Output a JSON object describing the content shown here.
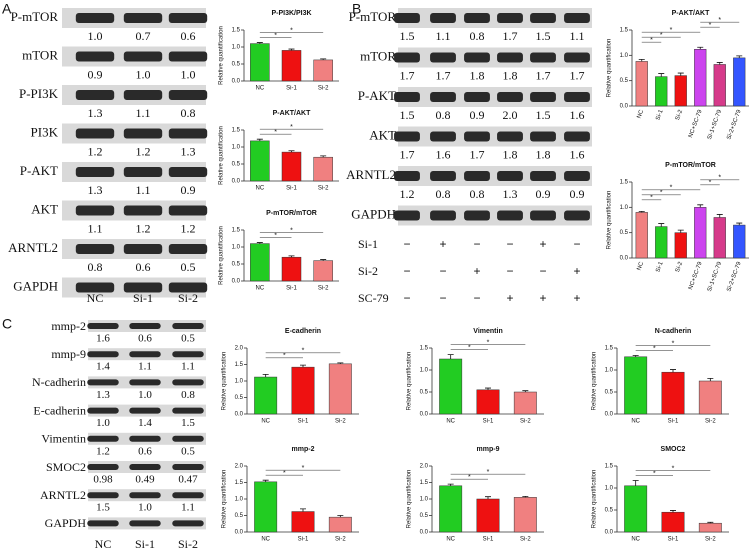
{
  "panel_labels": [
    "A",
    "B",
    "C"
  ],
  "blots": [
    {
      "columns": [
        "NC",
        "Si-1",
        "Si-2"
      ],
      "rows": [
        {
          "name": "P-mTOR",
          "values": [
            "1.0",
            "0.7",
            "0.6"
          ]
        },
        {
          "name": "mTOR",
          "values": [
            "0.9",
            "1.0",
            "1.0"
          ]
        },
        {
          "name": "P-PI3K",
          "values": [
            "1.3",
            "1.1",
            "0.8"
          ]
        },
        {
          "name": "PI3K",
          "values": [
            "1.2",
            "1.2",
            "1.3"
          ]
        },
        {
          "name": "P-AKT",
          "values": [
            "1.3",
            "1.1",
            "0.9"
          ]
        },
        {
          "name": "AKT",
          "values": [
            "1.1",
            "1.2",
            "1.2"
          ]
        },
        {
          "name": "ARNTL2",
          "values": [
            "0.8",
            "0.6",
            "0.5"
          ]
        },
        {
          "name": "GAPDH",
          "values": []
        }
      ]
    },
    {
      "rows": [
        {
          "name": "P-mTOR",
          "values": [
            "1.5",
            "1.1",
            "0.8",
            "1.7",
            "1.5",
            "1.1"
          ]
        },
        {
          "name": "mTOR",
          "values": [
            "1.7",
            "1.7",
            "1.8",
            "1.8",
            "1.7",
            "1.7"
          ]
        },
        {
          "name": "P-AKT",
          "values": [
            "1.5",
            "0.8",
            "0.9",
            "2.0",
            "1.5",
            "1.6"
          ]
        },
        {
          "name": "AKT",
          "values": [
            "1.7",
            "1.6",
            "1.7",
            "1.8",
            "1.8",
            "1.6"
          ]
        },
        {
          "name": "ARNTL2",
          "values": [
            "1.2",
            "0.8",
            "0.8",
            "1.3",
            "0.9",
            "0.9"
          ]
        },
        {
          "name": "GAPDH",
          "values": []
        }
      ],
      "treatments": [
        {
          "name": "Si-1",
          "values": [
            "−",
            "+",
            "−",
            "−",
            "+",
            "−"
          ]
        },
        {
          "name": "Si-2",
          "values": [
            "−",
            "−",
            "+",
            "−",
            "−",
            "+"
          ]
        },
        {
          "name": "SC-79",
          "values": [
            "−",
            "−",
            "−",
            "+",
            "+",
            "+"
          ]
        }
      ]
    },
    {
      "columns": [
        "NC",
        "Si-1",
        "Si-2"
      ],
      "rows": [
        {
          "name": "mmp-2",
          "values": [
            "1.6",
            "0.6",
            "0.5"
          ]
        },
        {
          "name": "mmp-9",
          "values": [
            "1.4",
            "1.1",
            "1.1"
          ]
        },
        {
          "name": "N-cadherin",
          "values": [
            "1.3",
            "1.0",
            "0.8"
          ]
        },
        {
          "name": "E-cadherin",
          "values": [
            "1.0",
            "1.4",
            "1.5"
          ]
        },
        {
          "name": "Vimentin",
          "values": [
            "1.2",
            "0.6",
            "0.5"
          ]
        },
        {
          "name": "SMOC2",
          "values": [
            "0.98",
            "0.49",
            "0.47"
          ]
        },
        {
          "name": "ARNTL2",
          "values": [
            "1.5",
            "1.0",
            "1.1"
          ]
        },
        {
          "name": "GAPDH",
          "values": []
        }
      ]
    }
  ],
  "chart_data": [
    {
      "type": "bar",
      "title": "P-PI3K/PI3K",
      "ylabel": "Relative quantification",
      "categories": [
        "NC",
        "Si-1",
        "Si-2"
      ],
      "values": [
        1.1,
        0.9,
        0.62
      ],
      "errors": [
        0.03,
        0.04,
        0.03
      ],
      "colors": [
        "#22cc22",
        "#ee1111",
        "#f08080"
      ],
      "ylim": [
        0,
        1.5
      ],
      "yticks": [
        {
          "value": 0,
          "label": "0.0"
        },
        {
          "value": 0.5,
          "label": "0.5"
        },
        {
          "value": 1,
          "label": "1.0"
        },
        {
          "value": 1.5,
          "label": "1.5"
        }
      ],
      "annotations": [
        "*",
        "*"
      ]
    },
    {
      "type": "bar",
      "title": "P-AKT/AKT",
      "ylabel": "Relative quantification",
      "categories": [
        "NC",
        "Si-1",
        "Si-2"
      ],
      "values": [
        1.18,
        0.85,
        0.7
      ],
      "errors": [
        0.05,
        0.04,
        0.04
      ],
      "colors": [
        "#22cc22",
        "#ee1111",
        "#f08080"
      ],
      "ylim": [
        0,
        1.5
      ],
      "yticks": [
        {
          "value": 0,
          "label": "0.0"
        },
        {
          "value": 0.5,
          "label": "0.5"
        },
        {
          "value": 1,
          "label": "1.0"
        },
        {
          "value": 1.5,
          "label": "1.5"
        }
      ],
      "annotations": [
        "*",
        "*"
      ]
    },
    {
      "type": "bar",
      "title": "P-mTOR/mTOR",
      "ylabel": "Relative quantification",
      "categories": [
        "NC",
        "Si-1",
        "Si-2"
      ],
      "values": [
        1.1,
        0.7,
        0.6
      ],
      "errors": [
        0.03,
        0.04,
        0.03
      ],
      "colors": [
        "#22cc22",
        "#ee1111",
        "#f08080"
      ],
      "ylim": [
        0,
        1.5
      ],
      "yticks": [
        {
          "value": 0,
          "label": "0.0"
        },
        {
          "value": 0.5,
          "label": "0.5"
        },
        {
          "value": 1,
          "label": "1.0"
        },
        {
          "value": 1.5,
          "label": "1.5"
        }
      ],
      "annotations": [
        "*",
        "*"
      ]
    },
    {
      "type": "bar",
      "title": "P-AKT/AKT",
      "ylabel": "Relative quantification",
      "categories": [
        "NC",
        "Si-1",
        "Si-2",
        "NC+SC-79",
        "Si-1+SC-79",
        "Si-2+SC-79"
      ],
      "values": [
        0.88,
        0.58,
        0.6,
        1.12,
        0.82,
        0.95
      ],
      "errors": [
        0.04,
        0.06,
        0.05,
        0.04,
        0.04,
        0.04
      ],
      "colors": [
        "#f08080",
        "#22cc22",
        "#ee1111",
        "#cc44ee",
        "#d63a8a",
        "#3355ff"
      ],
      "ylim": [
        0,
        1.5
      ],
      "yticks": [
        {
          "value": 0,
          "label": "0.0"
        },
        {
          "value": 0.5,
          "label": "0.5"
        },
        {
          "value": 1,
          "label": "1.0"
        },
        {
          "value": 1.5,
          "label": "1.5"
        }
      ],
      "annotations": [
        "*",
        "*",
        "*",
        "*",
        "*"
      ]
    },
    {
      "type": "bar",
      "title": "P-mTOR/mTOR",
      "ylabel": "Relative quantification",
      "categories": [
        "NC",
        "Si-1",
        "Si-2",
        "NC+SC-79",
        "Si-1+SC-79",
        "Si-2+SC-79"
      ],
      "values": [
        0.9,
        0.62,
        0.5,
        1.0,
        0.8,
        0.65
      ],
      "errors": [
        0.02,
        0.06,
        0.05,
        0.05,
        0.06,
        0.04
      ],
      "colors": [
        "#f08080",
        "#22cc22",
        "#ee1111",
        "#cc44ee",
        "#d63a8a",
        "#3355ff"
      ],
      "ylim": [
        0,
        1.5
      ],
      "yticks": [
        {
          "value": 0,
          "label": "0.0"
        },
        {
          "value": 0.5,
          "label": "0.5"
        },
        {
          "value": 1,
          "label": "1.0"
        },
        {
          "value": 1.5,
          "label": "1.5"
        }
      ],
      "annotations": [
        "*",
        "*",
        "*",
        "*",
        "*"
      ]
    },
    {
      "type": "bar",
      "title": "E-cadherin",
      "ylabel": "Relative quantification",
      "categories": [
        "NC",
        "Si-1",
        "Si-2"
      ],
      "values": [
        1.12,
        1.42,
        1.52
      ],
      "errors": [
        0.08,
        0.06,
        0.03
      ],
      "colors": [
        "#22cc22",
        "#ee1111",
        "#f08080"
      ],
      "ylim": [
        0,
        2
      ],
      "yticks": [
        {
          "value": 0,
          "label": "0.0"
        },
        {
          "value": 0.5,
          "label": "0.5"
        },
        {
          "value": 1,
          "label": "1.0"
        },
        {
          "value": 1.5,
          "label": "1.5"
        },
        {
          "value": 2,
          "label": "2.0"
        }
      ],
      "annotations": [
        "*",
        "*"
      ]
    },
    {
      "type": "bar",
      "title": "Vimentin",
      "ylabel": "Relative quantification",
      "categories": [
        "NC",
        "Si-1",
        "Si-2"
      ],
      "values": [
        1.25,
        0.55,
        0.5
      ],
      "errors": [
        0.1,
        0.04,
        0.03
      ],
      "colors": [
        "#22cc22",
        "#ee1111",
        "#f08080"
      ],
      "ylim": [
        0,
        1.5
      ],
      "yticks": [
        {
          "value": 0,
          "label": "0.0"
        },
        {
          "value": 0.5,
          "label": "0.5"
        },
        {
          "value": 1,
          "label": "1.0"
        },
        {
          "value": 1.5,
          "label": "1.5"
        }
      ],
      "annotations": [
        "*",
        "*"
      ]
    },
    {
      "type": "bar",
      "title": "N-cadherin",
      "ylabel": "Relative quantification",
      "categories": [
        "NC",
        "Si-1",
        "Si-2"
      ],
      "values": [
        1.3,
        0.95,
        0.75
      ],
      "errors": [
        0.03,
        0.06,
        0.06
      ],
      "colors": [
        "#22cc22",
        "#ee1111",
        "#f08080"
      ],
      "ylim": [
        0,
        1.5
      ],
      "yticks": [
        {
          "value": 0,
          "label": "0.0"
        },
        {
          "value": 0.5,
          "label": "0.5"
        },
        {
          "value": 1,
          "label": "1.0"
        },
        {
          "value": 1.5,
          "label": "1.5"
        }
      ],
      "annotations": [
        "*",
        "*"
      ]
    },
    {
      "type": "bar",
      "title": "mmp-2",
      "ylabel": "Relative quantification",
      "categories": [
        "NC",
        "Si-1",
        "Si-2"
      ],
      "values": [
        1.52,
        0.62,
        0.45
      ],
      "errors": [
        0.05,
        0.08,
        0.05
      ],
      "colors": [
        "#22cc22",
        "#ee1111",
        "#f08080"
      ],
      "ylim": [
        0,
        2
      ],
      "yticks": [
        {
          "value": 0,
          "label": "0.0"
        },
        {
          "value": 0.5,
          "label": "0.5"
        },
        {
          "value": 1,
          "label": "1.0"
        },
        {
          "value": 1.5,
          "label": "1.5"
        },
        {
          "value": 2,
          "label": "2.0"
        }
      ],
      "annotations": [
        "*",
        "*"
      ]
    },
    {
      "type": "bar",
      "title": "mmp-9",
      "ylabel": "Relative quantification",
      "categories": [
        "NC",
        "Si-1",
        "Si-2"
      ],
      "values": [
        1.4,
        1.0,
        1.05
      ],
      "errors": [
        0.05,
        0.07,
        0.03
      ],
      "colors": [
        "#22cc22",
        "#ee1111",
        "#f08080"
      ],
      "ylim": [
        0,
        2
      ],
      "yticks": [
        {
          "value": 0,
          "label": "0.0"
        },
        {
          "value": 0.5,
          "label": "0.5"
        },
        {
          "value": 1,
          "label": "1.0"
        },
        {
          "value": 1.5,
          "label": "1.5"
        },
        {
          "value": 2,
          "label": "2.0"
        }
      ],
      "annotations": [
        "*",
        "*"
      ]
    },
    {
      "type": "bar",
      "title": "SMOC2",
      "ylabel": "Relative quantification",
      "categories": [
        "NC",
        "Si-1",
        "Si-2"
      ],
      "values": [
        1.05,
        0.45,
        0.2
      ],
      "errors": [
        0.12,
        0.04,
        0.02
      ],
      "colors": [
        "#22cc22",
        "#ee1111",
        "#f08080"
      ],
      "ylim": [
        0,
        1.5
      ],
      "yticks": [
        {
          "value": 0,
          "label": "0.0"
        },
        {
          "value": 0.5,
          "label": "0.5"
        },
        {
          "value": 1,
          "label": "1.0"
        },
        {
          "value": 1.5,
          "label": "1.5"
        }
      ],
      "annotations": [
        "*",
        "*"
      ]
    }
  ]
}
